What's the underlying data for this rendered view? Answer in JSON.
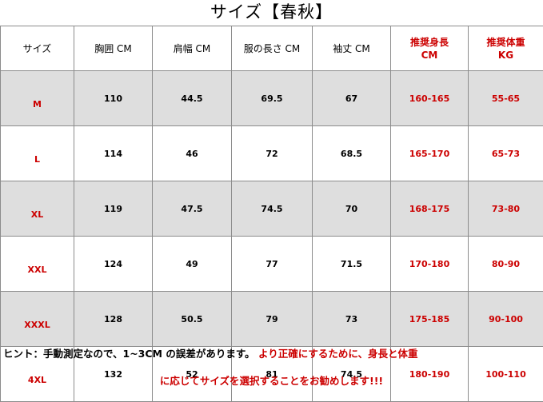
{
  "title": "サイズ【春秋】",
  "headers": [
    "サイズ",
    "胸囲 CM",
    "肩幅 CM",
    "服の長さ CM",
    "袖丈 CM"
  ],
  "rec_height": {
    "line1": "推奨身長",
    "line2": "CM"
  },
  "rec_weight": {
    "line1": "推奨体重",
    "line2": "KG"
  },
  "rows": [
    {
      "size": "M",
      "bust": "110",
      "shoulder": "44.5",
      "length": "69.5",
      "sleeve": "67",
      "height": "160-165",
      "weight": "55-65"
    },
    {
      "size": "L",
      "bust": "114",
      "shoulder": "46",
      "length": "72",
      "sleeve": "68.5",
      "height": "165-170",
      "weight": "65-73"
    },
    {
      "size": "XL",
      "bust": "119",
      "shoulder": "47.5",
      "length": "74.5",
      "sleeve": "70",
      "height": "168-175",
      "weight": "73-80"
    },
    {
      "size": "XXL",
      "bust": "124",
      "shoulder": "49",
      "length": "77",
      "sleeve": "71.5",
      "height": "170-180",
      "weight": "80-90"
    },
    {
      "size": "XXXL",
      "bust": "128",
      "shoulder": "50.5",
      "length": "79",
      "sleeve": "73",
      "height": "175-185",
      "weight": "90-100"
    },
    {
      "size": "4XL",
      "bust": "132",
      "shoulder": "52",
      "length": "81",
      "sleeve": "74.5",
      "height": "180-190",
      "weight": "100-110"
    }
  ],
  "note": {
    "part1": "ヒント：手動測定なので、1~3CM の誤差があります。",
    "part2": " より正確にするために、身長と体重",
    "line2": "に応じてサイズを選択することをお勧めします!!!"
  },
  "colors": {
    "accent": "#cc0000",
    "stripe": "#dedede",
    "border": "#8c8c8c"
  }
}
